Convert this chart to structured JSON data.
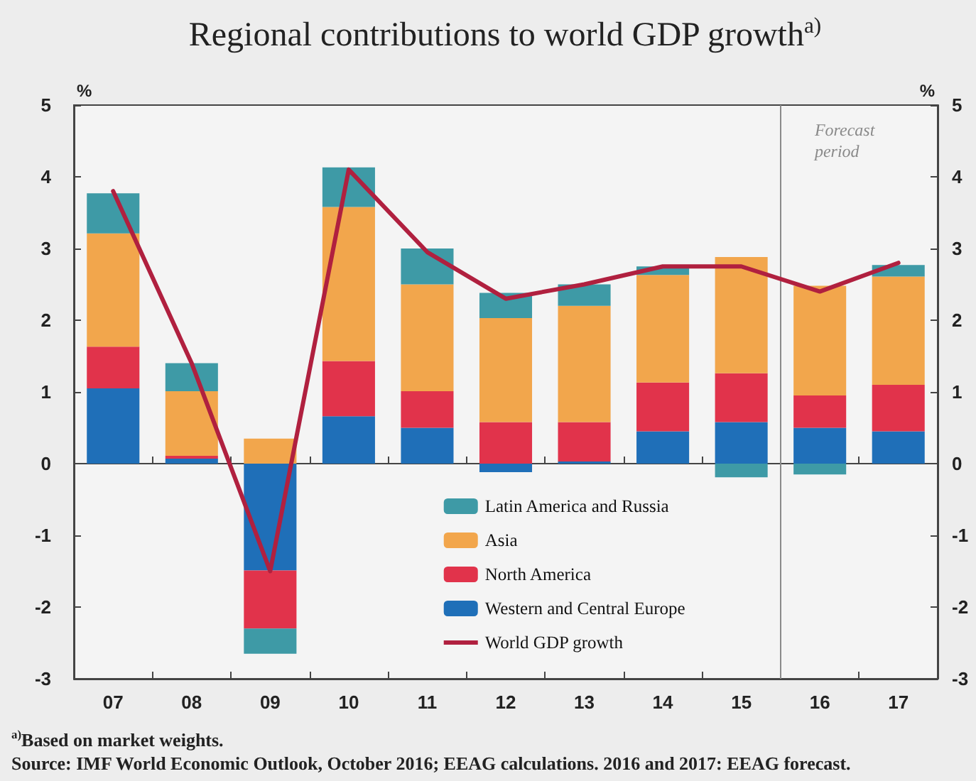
{
  "chart_data": {
    "type": "bar",
    "title": "Regional contributions to world GDP growth$^{a)}$",
    "ylabel": "%",
    "y2label": "%",
    "x": [
      2007,
      2008,
      2009,
      2010,
      2011,
      2012,
      2013,
      2014,
      2015,
      2016,
      2017
    ],
    "xlim": [
      2006.5,
      2017.5
    ],
    "xticks": [
      {
        "value": 2007,
        "label": "07"
      },
      {
        "value": 2007.5,
        "label": null
      },
      {
        "value": 2008,
        "label": "08"
      },
      {
        "value": 2008.5,
        "label": null
      },
      {
        "value": 2009,
        "label": "09"
      },
      {
        "value": 2009.5,
        "label": null
      },
      {
        "value": 2010,
        "label": "10"
      },
      {
        "value": 2010.5,
        "label": null
      },
      {
        "value": 2011,
        "label": "11"
      },
      {
        "value": 2011.5,
        "label": null
      },
      {
        "value": 2012,
        "label": "12"
      },
      {
        "value": 2012.5,
        "label": null
      },
      {
        "value": 2013,
        "label": "13"
      },
      {
        "value": 2013.5,
        "label": null
      },
      {
        "value": 2014,
        "label": "14"
      },
      {
        "value": 2014.5,
        "label": null
      },
      {
        "value": 2015,
        "label": "15"
      },
      {
        "value": 2015.5,
        "label": null
      },
      {
        "value": 2016,
        "label": "16"
      },
      {
        "value": 2016.5,
        "label": null
      },
      {
        "value": 2017,
        "label": "17"
      }
    ],
    "ylim": [
      -3,
      5
    ],
    "yticks": [
      -3,
      -2,
      -1,
      0,
      1,
      2,
      3,
      4,
      5
    ],
    "y2lim": [
      -3,
      5
    ],
    "y2ticks": [
      -3,
      -2,
      -1,
      0,
      1,
      2,
      3,
      4,
      5
    ],
    "stacked": true,
    "grid": false,
    "legend": "bottom",
    "series": [
      {
        "name": "Western and Central Europe",
        "color": "#1f6fb8",
        "values": [
          1.05,
          0.07,
          -1.49,
          0.66,
          0.5,
          -0.12,
          0.03,
          0.45,
          0.58,
          0.5,
          0.45
        ]
      },
      {
        "name": "North America",
        "color": "#e1334b",
        "values": [
          0.58,
          0.04,
          -0.81,
          0.77,
          0.51,
          0.58,
          0.55,
          0.68,
          0.68,
          0.45,
          0.65
        ]
      },
      {
        "name": "Asia",
        "color": "#f2a64c",
        "values": [
          1.58,
          0.9,
          0.35,
          2.15,
          1.49,
          1.45,
          1.62,
          1.5,
          1.62,
          1.53,
          1.51
        ]
      },
      {
        "name": "Latin America and Russia",
        "color": "#3e9aa6",
        "values": [
          0.56,
          0.39,
          -0.35,
          0.55,
          0.5,
          0.35,
          0.3,
          0.12,
          -0.19,
          -0.15,
          0.16
        ]
      },
      {
        "name": "World GDP growth",
        "type": "line",
        "color": "#b0203f",
        "values": [
          3.8,
          1.4,
          -1.5,
          4.1,
          2.95,
          2.3,
          2.5,
          2.75,
          2.75,
          2.4,
          2.8
        ]
      }
    ],
    "ref_lines": [
      {
        "axis": "x",
        "value": 2015.5,
        "label": "Forecast period",
        "color": "#8a8a8a"
      }
    ],
    "annotations": [
      "$^{a)}$Based on market weights.",
      "Source: IMF World Economic Outlook, October 2016; EEAG calculations. 2016 and 2017: EEAG forecast."
    ]
  }
}
